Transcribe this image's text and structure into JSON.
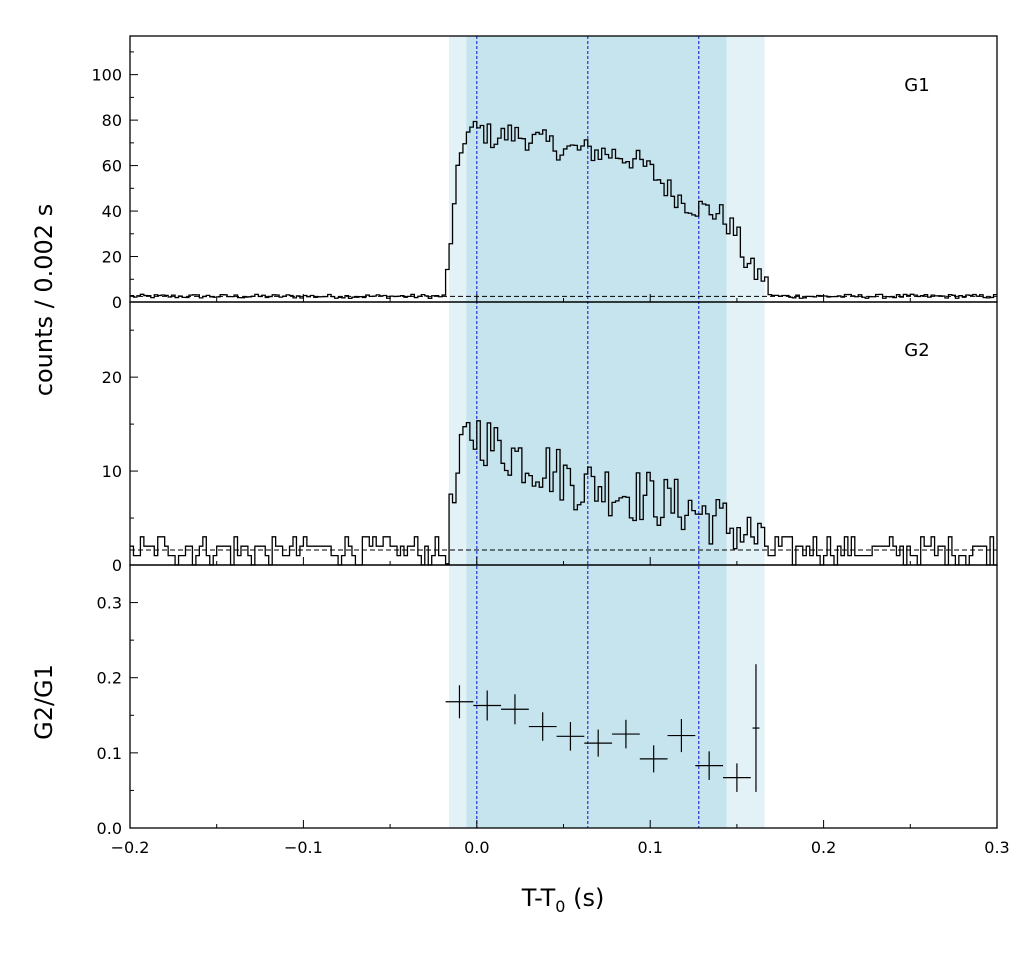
{
  "chart_data": {
    "type": "histogram-stack",
    "xlabel": "T-T",
    "xlabel_sub": "0",
    "xlabel_unit": " (s)",
    "ylabel_top": "counts /  0.002 s",
    "xlim": [
      -0.2,
      0.3
    ],
    "x_ticks": [
      "−0.2",
      "−0.1",
      "0.0",
      "0.1",
      "0.2",
      "0.3"
    ],
    "bin_width": 0.002,
    "shaded_regions": [
      {
        "from": -0.016,
        "to": 0.166,
        "color": "#e3f2f7"
      },
      {
        "from": -0.006,
        "to": 0.144,
        "color": "#c6e4ee"
      }
    ],
    "vertical_lines": [
      0.0,
      0.064,
      0.128
    ],
    "vline_color": "#2233dd",
    "panels": [
      {
        "label": "G1",
        "ylim": [
          0,
          117
        ],
        "y_ticks": [
          "0",
          "20",
          "40",
          "60",
          "80",
          "100"
        ],
        "background_level": 2.5,
        "anchors": [
          [
            -0.2,
            2.5
          ],
          [
            -0.03,
            2.5
          ],
          [
            -0.018,
            2.5
          ],
          [
            -0.016,
            22
          ],
          [
            -0.013,
            40
          ],
          [
            -0.01,
            62
          ],
          [
            -0.007,
            73
          ],
          [
            -0.003,
            75
          ],
          [
            0.002,
            76
          ],
          [
            0.01,
            72
          ],
          [
            0.02,
            74
          ],
          [
            0.03,
            72
          ],
          [
            0.04,
            70
          ],
          [
            0.05,
            67
          ],
          [
            0.06,
            67
          ],
          [
            0.07,
            66
          ],
          [
            0.08,
            65
          ],
          [
            0.09,
            63
          ],
          [
            0.1,
            58
          ],
          [
            0.11,
            50
          ],
          [
            0.12,
            44
          ],
          [
            0.13,
            41
          ],
          [
            0.14,
            39
          ],
          [
            0.15,
            30
          ],
          [
            0.155,
            18
          ],
          [
            0.16,
            13
          ],
          [
            0.166,
            11
          ],
          [
            0.168,
            4
          ],
          [
            0.172,
            2.5
          ],
          [
            0.3,
            2.5
          ]
        ],
        "noise_amp": [
          0.9,
          5.5
        ]
      },
      {
        "label": "G2",
        "ylim": [
          0,
          28
        ],
        "y_ticks": [
          "0",
          "10",
          "20"
        ],
        "background_level": 1.6,
        "anchors": [
          [
            -0.2,
            1.6
          ],
          [
            -0.02,
            1.6
          ],
          [
            -0.018,
            1.6
          ],
          [
            -0.016,
            4
          ],
          [
            -0.013,
            7
          ],
          [
            -0.01,
            10
          ],
          [
            -0.007,
            13
          ],
          [
            -0.003,
            14
          ],
          [
            0.002,
            14
          ],
          [
            0.01,
            12.5
          ],
          [
            0.02,
            12
          ],
          [
            0.03,
            11
          ],
          [
            0.04,
            10.5
          ],
          [
            0.05,
            9.5
          ],
          [
            0.06,
            8.5
          ],
          [
            0.07,
            8.5
          ],
          [
            0.08,
            8
          ],
          [
            0.09,
            7.5
          ],
          [
            0.1,
            7.2
          ],
          [
            0.11,
            6.5
          ],
          [
            0.12,
            6.2
          ],
          [
            0.13,
            5.5
          ],
          [
            0.14,
            4.6
          ],
          [
            0.15,
            3.8
          ],
          [
            0.16,
            3
          ],
          [
            0.166,
            2
          ],
          [
            0.17,
            1.6
          ],
          [
            0.3,
            1.6
          ]
        ],
        "noise_amp": [
          1.5,
          3
        ]
      }
    ],
    "ratio_panel": {
      "ylabel": "G2/G1",
      "ylim": [
        0,
        0.35
      ],
      "y_ticks": [
        "0.0",
        "0.1",
        "0.2",
        "0.3"
      ],
      "points": [
        {
          "x": -0.01,
          "xerr": 0.008,
          "y": 0.168,
          "yerr": 0.022
        },
        {
          "x": 0.006,
          "xerr": 0.008,
          "y": 0.163,
          "yerr": 0.02
        },
        {
          "x": 0.022,
          "xerr": 0.008,
          "y": 0.158,
          "yerr": 0.02
        },
        {
          "x": 0.038,
          "xerr": 0.008,
          "y": 0.135,
          "yerr": 0.019
        },
        {
          "x": 0.054,
          "xerr": 0.008,
          "y": 0.122,
          "yerr": 0.019
        },
        {
          "x": 0.07,
          "xerr": 0.008,
          "y": 0.113,
          "yerr": 0.018
        },
        {
          "x": 0.086,
          "xerr": 0.008,
          "y": 0.125,
          "yerr": 0.019
        },
        {
          "x": 0.102,
          "xerr": 0.008,
          "y": 0.092,
          "yerr": 0.018
        },
        {
          "x": 0.118,
          "xerr": 0.008,
          "y": 0.123,
          "yerr": 0.022
        },
        {
          "x": 0.134,
          "xerr": 0.008,
          "y": 0.083,
          "yerr": 0.019
        },
        {
          "x": 0.15,
          "xerr": 0.008,
          "y": 0.067,
          "yerr": 0.019
        },
        {
          "x": 0.161,
          "xerr": 0.002,
          "y": 0.133,
          "yerr": 0.085
        }
      ]
    }
  }
}
